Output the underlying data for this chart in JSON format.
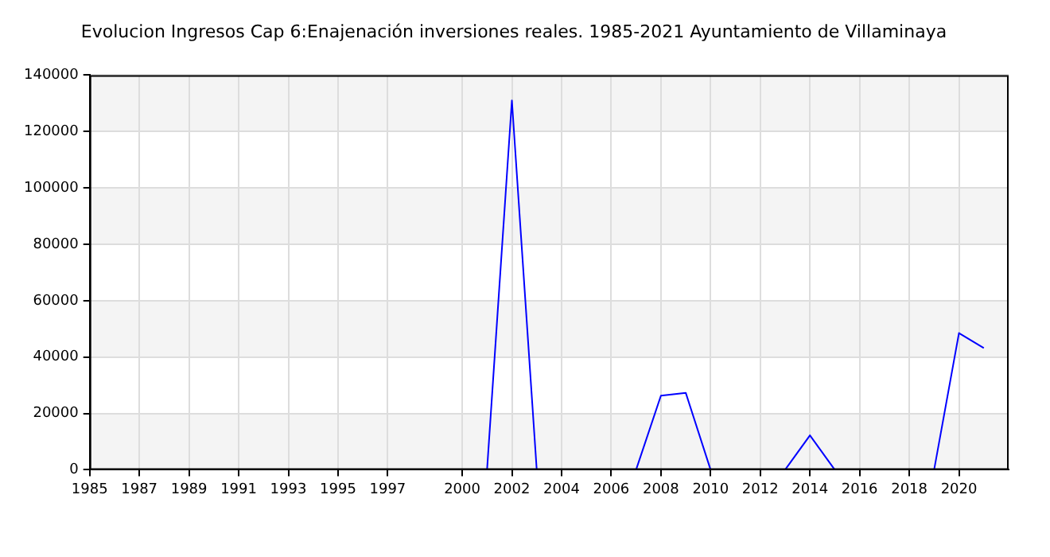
{
  "chart_data": {
    "type": "line",
    "title": "Evolucion Ingresos Cap 6:Enajenación inversiones reales. 1985-2021 Ayuntamiento de Villaminaya",
    "x": [
      2001,
      2002,
      2003,
      2004,
      2005,
      2006,
      2007,
      2008,
      2009,
      2010,
      2011,
      2012,
      2013,
      2014,
      2015,
      2016,
      2017,
      2018,
      2019,
      2020,
      2021
    ],
    "series": [
      {
        "color": "#0000ff",
        "values": [
          0,
          131000,
          0,
          null,
          null,
          null,
          0,
          26300,
          27300,
          0,
          null,
          null,
          0,
          12200,
          0,
          null,
          null,
          null,
          0,
          48500,
          43200
        ]
      }
    ],
    "xlim": [
      1985,
      2022
    ],
    "xticks": [
      1985,
      1987,
      1989,
      1991,
      1993,
      1995,
      1997,
      2000,
      2002,
      2004,
      2006,
      2008,
      2010,
      2012,
      2014,
      2016,
      2018,
      2020
    ],
    "ylim": [
      0,
      140000
    ],
    "yticks": [
      0,
      20000,
      40000,
      60000,
      80000,
      100000,
      120000,
      140000
    ],
    "grid": true,
    "legend": false,
    "marker": "none",
    "line_style": "solid"
  }
}
